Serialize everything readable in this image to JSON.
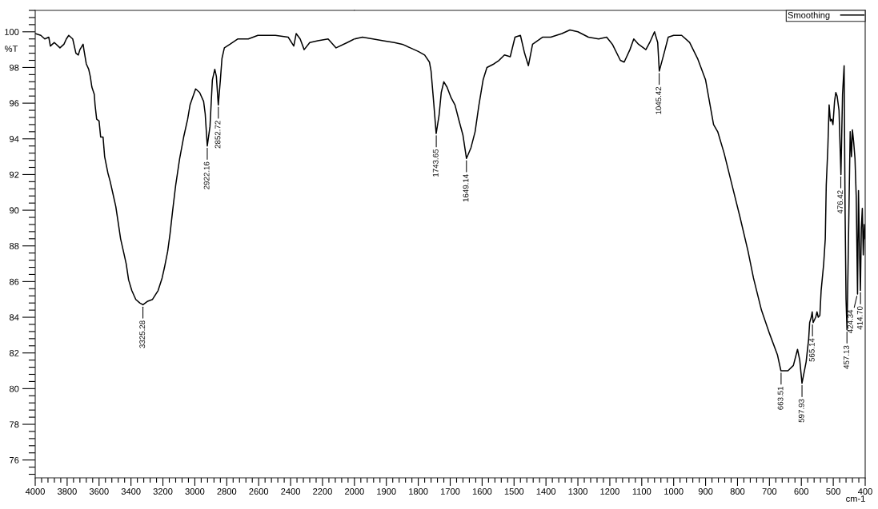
{
  "chart_data": [
    {
      "type": "line",
      "ylabel": "%T",
      "xlim": [
        4000,
        2000
      ],
      "ylim": [
        75,
        101.2
      ],
      "xticks": [
        4000,
        {
          "value": 3960,
          "label": null
        },
        {
          "value": 3920,
          "label": null
        },
        {
          "value": 3880,
          "label": null
        },
        {
          "value": 3840,
          "label": null
        },
        3800,
        {
          "value": 3760,
          "label": null
        },
        {
          "value": 3720,
          "label": null
        },
        {
          "value": 3680,
          "label": null
        },
        {
          "value": 3640,
          "label": null
        },
        3600,
        {
          "value": 3560,
          "label": null
        },
        {
          "value": 3520,
          "label": null
        },
        {
          "value": 3480,
          "label": null
        },
        {
          "value": 3440,
          "label": null
        },
        3400,
        {
          "value": 3360,
          "label": null
        },
        {
          "value": 3320,
          "label": null
        },
        {
          "value": 3280,
          "label": null
        },
        {
          "value": 3240,
          "label": null
        },
        3200,
        {
          "value": 3160,
          "label": null
        },
        {
          "value": 3120,
          "label": null
        },
        {
          "value": 3080,
          "label": null
        },
        {
          "value": 3040,
          "label": null
        },
        3000,
        {
          "value": 2960,
          "label": null
        },
        {
          "value": 2920,
          "label": null
        },
        {
          "value": 2880,
          "label": null
        },
        {
          "value": 2840,
          "label": null
        },
        2800,
        {
          "value": 2760,
          "label": null
        },
        {
          "value": 2720,
          "label": null
        },
        {
          "value": 2680,
          "label": null
        },
        {
          "value": 2640,
          "label": null
        },
        2600,
        {
          "value": 2560,
          "label": null
        },
        {
          "value": 2520,
          "label": null
        },
        {
          "value": 2480,
          "label": null
        },
        {
          "value": 2440,
          "label": null
        },
        2400,
        {
          "value": 2360,
          "label": null
        },
        {
          "value": 2320,
          "label": null
        },
        {
          "value": 2280,
          "label": null
        },
        {
          "value": 2240,
          "label": null
        },
        2200,
        {
          "value": 2160,
          "label": null
        },
        {
          "value": 2120,
          "label": null
        },
        {
          "value": 2080,
          "label": null
        },
        {
          "value": 2040,
          "label": null
        }
      ],
      "yticks": [
        {
          "value": 75.2,
          "label": null
        },
        {
          "value": 75.6,
          "label": null
        },
        76,
        {
          "value": 76.4,
          "label": null
        },
        {
          "value": 76.8,
          "label": null
        },
        {
          "value": 77.2,
          "label": null
        },
        {
          "value": 77.6,
          "label": null
        },
        78,
        {
          "value": 78.4,
          "label": null
        },
        {
          "value": 78.8,
          "label": null
        },
        {
          "value": 79.2,
          "label": null
        },
        {
          "value": 79.6,
          "label": null
        },
        80,
        {
          "value": 80.4,
          "label": null
        },
        {
          "value": 80.8,
          "label": null
        },
        {
          "value": 81.2,
          "label": null
        },
        {
          "value": 81.6,
          "label": null
        },
        82,
        {
          "value": 82.4,
          "label": null
        },
        {
          "value": 82.8,
          "label": null
        },
        {
          "value": 83.2,
          "label": null
        },
        {
          "value": 83.6,
          "label": null
        },
        84,
        {
          "value": 84.4,
          "label": null
        },
        {
          "value": 84.8,
          "label": null
        },
        {
          "value": 85.2,
          "label": null
        },
        {
          "value": 85.6,
          "label": null
        },
        86,
        {
          "value": 86.4,
          "label": null
        },
        {
          "value": 86.8,
          "label": null
        },
        {
          "value": 87.2,
          "label": null
        },
        {
          "value": 87.6,
          "label": null
        },
        88,
        {
          "value": 88.4,
          "label": null
        },
        {
          "value": 88.8,
          "label": null
        },
        {
          "value": 89.2,
          "label": null
        },
        {
          "value": 89.6,
          "label": null
        },
        90,
        {
          "value": 90.4,
          "label": null
        },
        {
          "value": 90.8,
          "label": null
        },
        {
          "value": 91.2,
          "label": null
        },
        {
          "value": 91.6,
          "label": null
        },
        92,
        {
          "value": 92.4,
          "label": null
        },
        {
          "value": 92.8,
          "label": null
        },
        {
          "value": 93.2,
          "label": null
        },
        {
          "value": 93.6,
          "label": null
        },
        94,
        {
          "value": 94.4,
          "label": null
        },
        {
          "value": 94.8,
          "label": null
        },
        {
          "value": 95.2,
          "label": null
        },
        {
          "value": 95.6,
          "label": null
        },
        96,
        {
          "value": 96.4,
          "label": null
        },
        {
          "value": 96.8,
          "label": null
        },
        {
          "value": 97.2,
          "label": null
        },
        {
          "value": 97.6,
          "label": null
        },
        98,
        {
          "value": 98.4,
          "label": null
        },
        {
          "value": 98.8,
          "label": null
        },
        {
          "value": 99.2,
          "label": null
        },
        {
          "value": 99.6,
          "label": null
        },
        100,
        {
          "value": 100.4,
          "label": null
        },
        {
          "value": 100.8,
          "label": null
        },
        {
          "value": 101.2,
          "label": null
        }
      ],
      "x": [
        4000,
        3965,
        3940,
        3915,
        3905,
        3880,
        3845,
        3820,
        3805,
        3790,
        3765,
        3745,
        3730,
        3720,
        3700,
        3695,
        3680,
        3665,
        3655,
        3645,
        3630,
        3625,
        3615,
        3600,
        3590,
        3575,
        3565,
        3545,
        3530,
        3515,
        3495,
        3480,
        3465,
        3445,
        3430,
        3415,
        3395,
        3370,
        3345,
        3325,
        3295,
        3265,
        3230,
        3205,
        3190,
        3170,
        3155,
        3140,
        3120,
        3095,
        3070,
        3045,
        3030,
        2995,
        2970,
        2945,
        2935,
        2922,
        2905,
        2890,
        2875,
        2865,
        2853,
        2840,
        2830,
        2815,
        2780,
        2730,
        2665,
        2605,
        2495,
        2415,
        2380,
        2365,
        2340,
        2315,
        2280,
        2230,
        2165,
        2115,
        2045,
        2000
      ],
      "series": [
        {
          "color": "#000000",
          "values": [
            99.9,
            99.8,
            99.6,
            99.7,
            99.2,
            99.4,
            99.1,
            99.3,
            99.6,
            99.8,
            99.6,
            98.8,
            98.7,
            99.0,
            99.3,
            99.0,
            98.2,
            97.9,
            97.5,
            96.9,
            96.5,
            95.9,
            95.1,
            95.0,
            94.1,
            94.1,
            93.0,
            92.1,
            91.6,
            91.0,
            90.2,
            89.3,
            88.4,
            87.6,
            87.0,
            86.1,
            85.5,
            85.0,
            84.8,
            84.7,
            84.9,
            85.0,
            85.5,
            86.2,
            86.8,
            87.7,
            88.7,
            89.9,
            91.4,
            92.9,
            94.1,
            95.1,
            95.9,
            96.8,
            96.6,
            96.1,
            95.4,
            93.6,
            94.7,
            97.3,
            97.9,
            97.5,
            95.9,
            97.3,
            98.5,
            99.1,
            99.3,
            99.6,
            99.6,
            99.8,
            99.8,
            99.7,
            99.2,
            99.9,
            99.6,
            99.0,
            99.4,
            99.5,
            99.6,
            99.1,
            99.4,
            99.6
          ]
        }
      ],
      "annotations": [
        {
          "text": "3325.28",
          "x": 3325.28,
          "y": 84.7
        },
        {
          "text": "2922.16",
          "x": 2922.16,
          "y": 93.6
        },
        {
          "text": "2852.72",
          "x": 2852.72,
          "y": 95.9
        }
      ]
    },
    {
      "type": "line",
      "xlabel": "cm-1",
      "legend": "top right",
      "tick_labels": "x",
      "xlim": [
        2000,
        400
      ],
      "ylim": [
        75,
        101.2
      ],
      "xticks": [
        2000,
        {
          "value": 1980,
          "label": null
        },
        {
          "value": 1960,
          "label": null
        },
        {
          "value": 1940,
          "label": null
        },
        {
          "value": 1920,
          "label": null
        },
        1900,
        {
          "value": 1880,
          "label": null
        },
        {
          "value": 1860,
          "label": null
        },
        {
          "value": 1840,
          "label": null
        },
        {
          "value": 1820,
          "label": null
        },
        1800,
        {
          "value": 1780,
          "label": null
        },
        {
          "value": 1760,
          "label": null
        },
        {
          "value": 1740,
          "label": null
        },
        {
          "value": 1720,
          "label": null
        },
        1700,
        {
          "value": 1680,
          "label": null
        },
        {
          "value": 1660,
          "label": null
        },
        {
          "value": 1640,
          "label": null
        },
        {
          "value": 1620,
          "label": null
        },
        1600,
        {
          "value": 1580,
          "label": null
        },
        {
          "value": 1560,
          "label": null
        },
        {
          "value": 1540,
          "label": null
        },
        {
          "value": 1520,
          "label": null
        },
        1500,
        {
          "value": 1480,
          "label": null
        },
        {
          "value": 1460,
          "label": null
        },
        {
          "value": 1440,
          "label": null
        },
        {
          "value": 1420,
          "label": null
        },
        1400,
        {
          "value": 1380,
          "label": null
        },
        {
          "value": 1360,
          "label": null
        },
        {
          "value": 1340,
          "label": null
        },
        {
          "value": 1320,
          "label": null
        },
        1300,
        {
          "value": 1280,
          "label": null
        },
        {
          "value": 1260,
          "label": null
        },
        {
          "value": 1240,
          "label": null
        },
        {
          "value": 1220,
          "label": null
        },
        1200,
        {
          "value": 1180,
          "label": null
        },
        {
          "value": 1160,
          "label": null
        },
        {
          "value": 1140,
          "label": null
        },
        {
          "value": 1120,
          "label": null
        },
        1100,
        {
          "value": 1080,
          "label": null
        },
        {
          "value": 1060,
          "label": null
        },
        {
          "value": 1040,
          "label": null
        },
        {
          "value": 1020,
          "label": null
        },
        1000,
        {
          "value": 980,
          "label": null
        },
        {
          "value": 960,
          "label": null
        },
        {
          "value": 940,
          "label": null
        },
        {
          "value": 920,
          "label": null
        },
        900,
        {
          "value": 880,
          "label": null
        },
        {
          "value": 860,
          "label": null
        },
        {
          "value": 840,
          "label": null
        },
        {
          "value": 820,
          "label": null
        },
        800,
        {
          "value": 780,
          "label": null
        },
        {
          "value": 760,
          "label": null
        },
        {
          "value": 740,
          "label": null
        },
        {
          "value": 720,
          "label": null
        },
        700,
        {
          "value": 680,
          "label": null
        },
        {
          "value": 660,
          "label": null
        },
        {
          "value": 640,
          "label": null
        },
        {
          "value": 620,
          "label": null
        },
        600,
        {
          "value": 580,
          "label": null
        },
        {
          "value": 560,
          "label": null
        },
        {
          "value": 540,
          "label": null
        },
        {
          "value": 520,
          "label": null
        },
        500,
        {
          "value": 480,
          "label": null
        },
        {
          "value": 460,
          "label": null
        },
        {
          "value": 440,
          "label": null
        },
        {
          "value": 420,
          "label": null
        },
        400
      ],
      "x": [
        2000,
        1975,
        1942,
        1910,
        1875,
        1850,
        1825,
        1800,
        1780,
        1765,
        1760,
        1752,
        1744,
        1735,
        1728,
        1720,
        1710,
        1697,
        1685,
        1672,
        1660,
        1649,
        1635,
        1622,
        1610,
        1597,
        1585,
        1563,
        1547,
        1530,
        1512,
        1497,
        1480,
        1467,
        1455,
        1442,
        1410,
        1385,
        1350,
        1325,
        1300,
        1267,
        1235,
        1210,
        1192,
        1167,
        1155,
        1137,
        1125,
        1110,
        1087,
        1075,
        1060,
        1050,
        1045,
        1030,
        1017,
        1000,
        975,
        950,
        925,
        900,
        875,
        862,
        842,
        817,
        792,
        767,
        750,
        725,
        700,
        675,
        664,
        642,
        625,
        612,
        605,
        598,
        585,
        577,
        574,
        569,
        566,
        563,
        555,
        551,
        547,
        542,
        538,
        530,
        525,
        522,
        517,
        513,
        509,
        505,
        501,
        496,
        492,
        488,
        482,
        476,
        471,
        466,
        463,
        460,
        457,
        454,
        451,
        447,
        443,
        440,
        436,
        432,
        428,
        424,
        421,
        418,
        415,
        412,
        409,
        406,
        403,
        400
      ],
      "series": [
        {
          "name": "Smoothing",
          "color": "#000000",
          "values": [
            99.6,
            99.7,
            99.6,
            99.5,
            99.4,
            99.3,
            99.1,
            98.9,
            98.7,
            98.3,
            97.8,
            96.1,
            94.3,
            95.3,
            96.6,
            97.2,
            96.9,
            96.3,
            95.9,
            95.0,
            94.2,
            92.9,
            93.5,
            94.4,
            95.9,
            97.3,
            98.0,
            98.2,
            98.4,
            98.7,
            98.6,
            99.7,
            99.8,
            98.8,
            98.1,
            99.3,
            99.7,
            99.7,
            99.9,
            100.1,
            100.0,
            99.7,
            99.6,
            99.7,
            99.3,
            98.4,
            98.3,
            99.0,
            99.6,
            99.3,
            99.0,
            99.4,
            100.0,
            99.4,
            97.8,
            98.8,
            99.7,
            99.8,
            99.8,
            99.4,
            98.5,
            97.3,
            94.8,
            94.4,
            93.2,
            91.4,
            89.6,
            87.7,
            86.2,
            84.4,
            83.1,
            81.9,
            81.0,
            81.0,
            81.3,
            82.2,
            81.6,
            80.3,
            81.5,
            82.8,
            83.7,
            84.0,
            84.3,
            83.7,
            84.0,
            84.3,
            84.0,
            84.1,
            85.5,
            87.0,
            88.4,
            91.4,
            93.5,
            95.9,
            95.0,
            95.1,
            94.8,
            96.1,
            96.6,
            96.4,
            95.6,
            92.0,
            96.5,
            98.1,
            90.0,
            85.0,
            83.3,
            86.5,
            89.9,
            94.4,
            93.0,
            94.5,
            93.8,
            92.9,
            90.7,
            85.3,
            91.1,
            88.0,
            85.5,
            89.0,
            90.1,
            87.5,
            89.2,
            88.4
          ]
        }
      ],
      "annotations": [
        {
          "text": "1743.65",
          "x": 1743.65,
          "y": 94.3
        },
        {
          "text": "1649.14",
          "x": 1649.14,
          "y": 92.9
        },
        {
          "text": "1045.42",
          "x": 1045.42,
          "y": 97.8
        },
        {
          "text": "663.51",
          "x": 663.51,
          "y": 81.0
        },
        {
          "text": "597.93",
          "x": 597.93,
          "y": 80.3
        },
        {
          "text": "565.14",
          "x": 565.14,
          "y": 83.7
        },
        {
          "text": "476.42",
          "x": 476.42,
          "y": 92.0
        },
        {
          "text": "457.13",
          "x": 457.13,
          "y": 83.3
        },
        {
          "text": "424.34",
          "x": 424.34,
          "y": 85.3
        },
        {
          "text": "414.70",
          "x": 414.7,
          "y": 85.5
        }
      ]
    }
  ]
}
